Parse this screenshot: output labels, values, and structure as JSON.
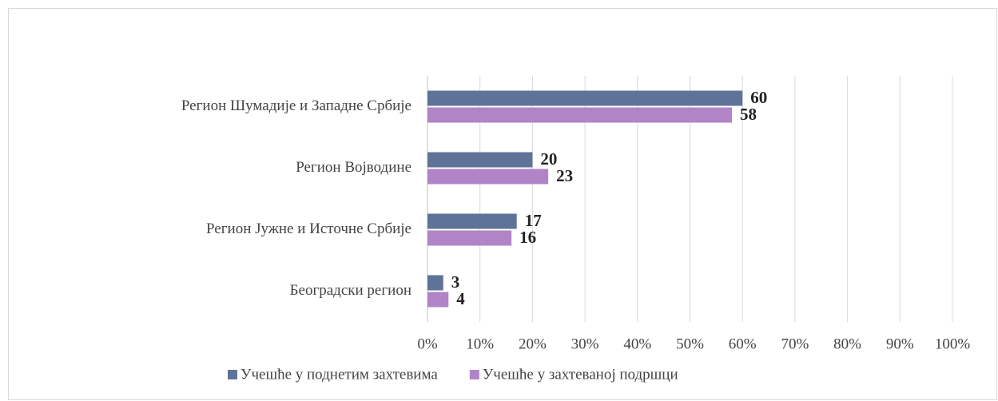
{
  "chart_data": {
    "type": "barh",
    "categories": [
      "Регион Шумадије и Западне Србије",
      "Регион Војводине",
      "Регион Јужне и Источне Србије",
      "Београдски регион"
    ],
    "series": [
      {
        "name": "Учешће у поднетим захтевима",
        "color": "#5f7399",
        "values": [
          60,
          20,
          17,
          3
        ]
      },
      {
        "name": "Учешће у захтеваној подршци",
        "color": "#b084c7",
        "values": [
          58,
          23,
          16,
          4
        ]
      }
    ],
    "xlim": [
      0,
      100
    ],
    "xticks": [
      {
        "value": 0,
        "label": "0%"
      },
      {
        "value": 10,
        "label": "10%"
      },
      {
        "value": 20,
        "label": "20%"
      },
      {
        "value": 30,
        "label": "30%"
      },
      {
        "value": 40,
        "label": "40%"
      },
      {
        "value": 50,
        "label": "50%"
      },
      {
        "value": 60,
        "label": "60%"
      },
      {
        "value": 70,
        "label": "70%"
      },
      {
        "value": 80,
        "label": "80%"
      },
      {
        "value": 90,
        "label": "90%"
      },
      {
        "value": 100,
        "label": "100%"
      }
    ],
    "grid": true,
    "legend": "bottom"
  }
}
